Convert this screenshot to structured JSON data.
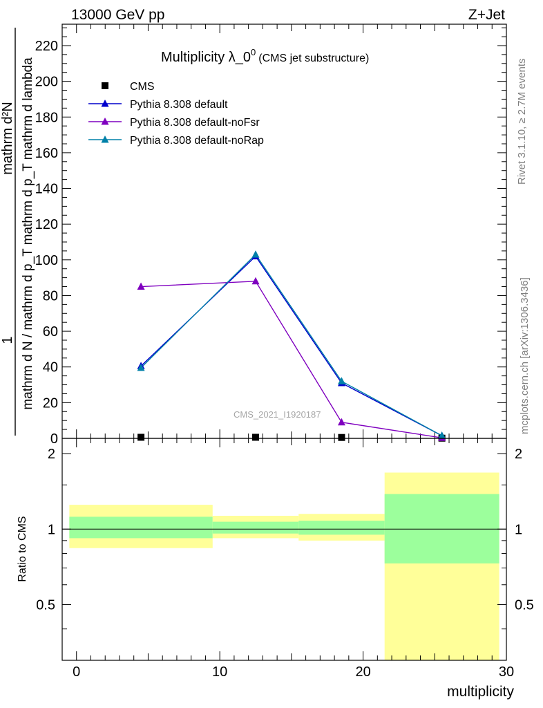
{
  "header": {
    "left": "13000 GeV pp",
    "right": "Z+Jet"
  },
  "main_title": {
    "main": "Multiplicity λ_0",
    "sup": "0",
    "paren": "(CMS jet substructure)"
  },
  "side_labels": {
    "rivet": "Rivet 3.1.10, ≥ 2.7M events",
    "mcplots": "mcplots.cern.ch [arXiv:1306.3436]"
  },
  "watermark": "CMS_2021_I1920187",
  "y_label_numerator": "1",
  "y_label_denominator": "mathrm d N / mathrm d p_T mathrm d p_T mathrm d lambda",
  "y_label_top": "mathrm d²N",
  "ratio_ylabel": "Ratio to CMS",
  "colors": {
    "default": "#0000cc",
    "noFsr": "#7f00bf",
    "noRap": "#0080a8",
    "band_inner": "#9cff9c",
    "band_outer": "#ffff99"
  },
  "chart_data": [
    {
      "type": "line",
      "panel": "main",
      "xlim": [
        -1,
        30
      ],
      "ylim": [
        0,
        232
      ],
      "xlabel": "multiplicity",
      "y_ticks": [
        0,
        20,
        40,
        60,
        80,
        100,
        120,
        140,
        160,
        180,
        200,
        220
      ],
      "x_ticks": [
        0,
        10,
        20,
        30
      ],
      "legend_position": "top-left",
      "series": [
        {
          "name": "CMS",
          "marker": "square",
          "color": "#000000",
          "x": [
            4.5,
            12.5,
            18.5,
            25.5
          ],
          "y": [
            0.6,
            0.6,
            0.5,
            0.1
          ]
        },
        {
          "name": "Pythia 8.308 default",
          "marker": "triangle",
          "color": "#0000cc",
          "x": [
            4.5,
            12.5,
            18.5,
            25.5
          ],
          "y": [
            40.5,
            102,
            31,
            1.5
          ]
        },
        {
          "name": "Pythia 8.308 default-noFsr",
          "marker": "triangle",
          "color": "#7f00bf",
          "x": [
            4.5,
            12.5,
            18.5,
            25.5
          ],
          "y": [
            85,
            88,
            9,
            0.3
          ]
        },
        {
          "name": "Pythia 8.308 default-noRap",
          "marker": "triangle",
          "color": "#0080a8",
          "x": [
            4.5,
            12.5,
            18.5,
            25.5
          ],
          "y": [
            39.5,
            103,
            32,
            1.5
          ]
        }
      ]
    },
    {
      "type": "area",
      "panel": "ratio",
      "xlim": [
        -1,
        30
      ],
      "ylim": [
        0.3,
        2.3
      ],
      "ylabel": "Ratio to CMS",
      "xlabel": "multiplicity",
      "y_ticks": [
        0.5,
        1,
        2
      ],
      "x_ticks": [
        0,
        10,
        20,
        30
      ],
      "bins": [
        {
          "x_lo": -0.5,
          "x_hi": 9.5,
          "inner_lo": 0.92,
          "inner_hi": 1.12,
          "outer_lo": 0.84,
          "outer_hi": 1.25
        },
        {
          "x_lo": 9.5,
          "x_hi": 15.5,
          "inner_lo": 0.96,
          "inner_hi": 1.07,
          "outer_lo": 0.92,
          "outer_hi": 1.13
        },
        {
          "x_lo": 15.5,
          "x_hi": 21.5,
          "inner_lo": 0.95,
          "inner_hi": 1.08,
          "outer_lo": 0.9,
          "outer_hi": 1.15
        },
        {
          "x_lo": 21.5,
          "x_hi": 29.5,
          "inner_lo": 0.73,
          "inner_hi": 1.38,
          "outer_lo": 0.3,
          "outer_hi": 1.68
        }
      ],
      "reference_line": 1
    }
  ]
}
